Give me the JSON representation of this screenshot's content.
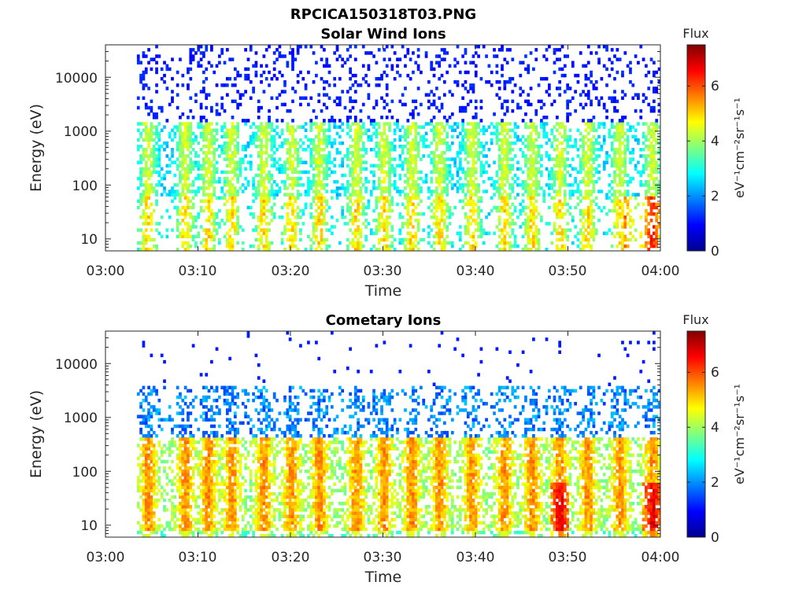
{
  "figure": {
    "title": "RPCICA150318T03.PNG"
  },
  "chart_data": [
    {
      "type": "heatmap",
      "title": "Solar Wind Ions",
      "xlabel": "Time",
      "ylabel": "Energy (eV)",
      "x_ticks": [
        "03:00",
        "03:10",
        "03:20",
        "03:30",
        "03:40",
        "03:50",
        "04:00"
      ],
      "x_range": [
        "03:00",
        "04:00"
      ],
      "y_scale": "log",
      "y_ticks": [
        "10",
        "100",
        "1000",
        "10000"
      ],
      "y_range_ev": [
        6,
        40000
      ],
      "colorbar": {
        "title": "Flux",
        "label": "eV⁻¹cm⁻²sr⁻¹s⁻¹",
        "ticks": [
          "0",
          "2",
          "4",
          "6"
        ],
        "range": [
          0,
          7.5
        ],
        "colormap": "jet"
      },
      "active_time_range": [
        "03:03",
        "04:00"
      ],
      "notes_on_values": "sparse blue speckles above 1000 eV; cyan-green bursts 60-600 eV roughly every 3-4 min; yellow-orange maxima near 20-40 eV around 03:49 and 03:59"
    },
    {
      "type": "heatmap",
      "title": "Cometary Ions",
      "xlabel": "Time",
      "ylabel": "Energy (eV)",
      "x_ticks": [
        "03:00",
        "03:10",
        "03:20",
        "03:30",
        "03:40",
        "03:50",
        "04:00"
      ],
      "x_range": [
        "03:00",
        "04:00"
      ],
      "y_scale": "log",
      "y_ticks": [
        "10",
        "100",
        "1000",
        "10000"
      ],
      "y_range_ev": [
        6,
        40000
      ],
      "colorbar": {
        "title": "Flux",
        "label": "eV⁻¹cm⁻²sr⁻¹s⁻¹",
        "ticks": [
          "0",
          "2",
          "4",
          "6"
        ],
        "range": [
          0,
          7.5
        ],
        "colormap": "jet"
      },
      "active_time_range": [
        "03:03",
        "04:00"
      ],
      "notes_on_values": "dense yellow-orange columns 10-200 eV; blue patches 500-3000 eV; red maxima near 20-40 eV around 03:49 and 03:59"
    }
  ]
}
